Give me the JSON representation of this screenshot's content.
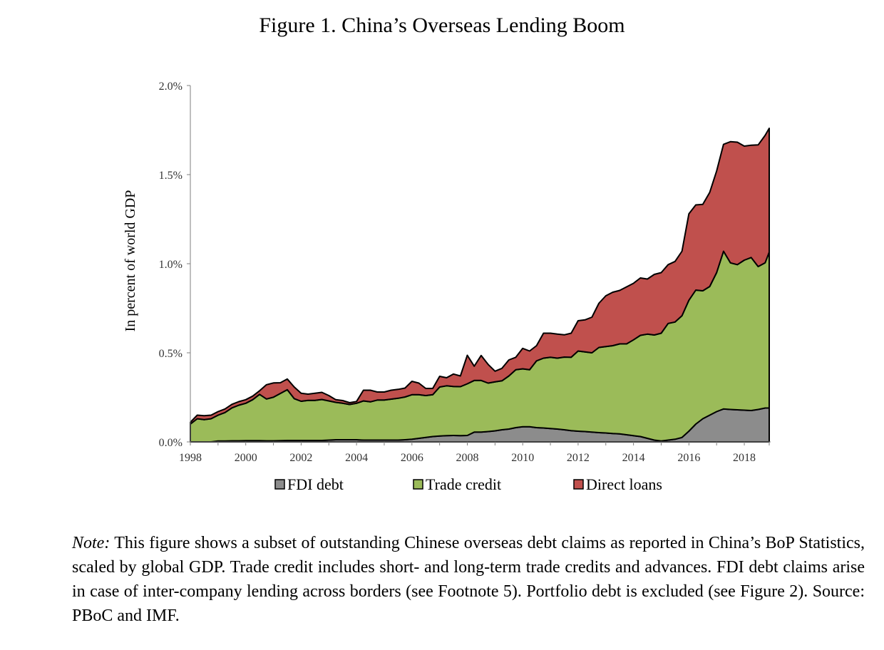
{
  "title": "Figure 1. China’s Overseas Lending Boom",
  "chart_data": {
    "type": "area",
    "stacked": true,
    "xlabel": "",
    "ylabel": "In percent of world GDP",
    "xlim": [
      1998,
      2018.9
    ],
    "ylim": [
      0,
      2.0
    ],
    "y_ticks": [
      {
        "value": 0.0,
        "label": "0.0%"
      },
      {
        "value": 0.5,
        "label": "0.5%"
      },
      {
        "value": 1.0,
        "label": "1.0%"
      },
      {
        "value": 1.5,
        "label": "1.5%"
      },
      {
        "value": 2.0,
        "label": "2.0%"
      }
    ],
    "x_ticks": [
      {
        "value": 1998,
        "label": "1998"
      },
      {
        "value": 2000,
        "label": "2000"
      },
      {
        "value": 2002,
        "label": "2002"
      },
      {
        "value": 2004,
        "label": "2004"
      },
      {
        "value": 2006,
        "label": "2006"
      },
      {
        "value": 2008,
        "label": "2008"
      },
      {
        "value": 2010,
        "label": "2010"
      },
      {
        "value": 2012,
        "label": "2012"
      },
      {
        "value": 2014,
        "label": "2014"
      },
      {
        "value": 2016,
        "label": "2016"
      },
      {
        "value": 2018,
        "label": "2018"
      }
    ],
    "grid": false,
    "legend_position": "bottom",
    "x": [
      1998,
      1998.25,
      1998.5,
      1998.75,
      1999,
      1999.25,
      1999.5,
      1999.75,
      2000,
      2000.25,
      2000.5,
      2000.75,
      2001,
      2001.25,
      2001.5,
      2001.75,
      2002,
      2002.25,
      2002.5,
      2002.75,
      2003,
      2003.25,
      2003.5,
      2003.75,
      2004,
      2004.25,
      2004.5,
      2004.75,
      2005,
      2005.25,
      2005.5,
      2005.75,
      2006,
      2006.25,
      2006.5,
      2006.75,
      2007,
      2007.25,
      2007.5,
      2007.75,
      2008,
      2008.25,
      2008.5,
      2008.75,
      2009,
      2009.25,
      2009.5,
      2009.75,
      2010,
      2010.25,
      2010.5,
      2010.75,
      2011,
      2011.25,
      2011.5,
      2011.75,
      2012,
      2012.25,
      2012.5,
      2012.75,
      2013,
      2013.25,
      2013.5,
      2013.75,
      2014,
      2014.25,
      2014.5,
      2014.75,
      2015,
      2015.25,
      2015.5,
      2015.75,
      2016,
      2016.25,
      2016.5,
      2016.75,
      2017,
      2017.25,
      2017.5,
      2017.75,
      2018,
      2018.25,
      2018.5,
      2018.75,
      2018.9
    ],
    "series": [
      {
        "name": "FDI debt",
        "color": "#8c8c8c",
        "values": [
          0.0,
          0.0,
          0.0,
          0.0,
          0.005,
          0.005,
          0.006,
          0.006,
          0.007,
          0.007,
          0.007,
          0.006,
          0.006,
          0.007,
          0.008,
          0.008,
          0.008,
          0.008,
          0.008,
          0.008,
          0.01,
          0.012,
          0.012,
          0.012,
          0.012,
          0.01,
          0.01,
          0.01,
          0.01,
          0.01,
          0.01,
          0.012,
          0.015,
          0.02,
          0.025,
          0.03,
          0.033,
          0.035,
          0.036,
          0.035,
          0.036,
          0.055,
          0.055,
          0.058,
          0.062,
          0.068,
          0.072,
          0.08,
          0.085,
          0.085,
          0.08,
          0.078,
          0.075,
          0.072,
          0.068,
          0.063,
          0.06,
          0.058,
          0.055,
          0.052,
          0.05,
          0.047,
          0.045,
          0.04,
          0.035,
          0.03,
          0.02,
          0.01,
          0.005,
          0.01,
          0.015,
          0.025,
          0.06,
          0.1,
          0.13,
          0.15,
          0.17,
          0.185,
          0.182,
          0.18,
          0.178,
          0.176,
          0.182,
          0.19,
          0.19
        ]
      },
      {
        "name": "Trade credit",
        "color": "#9bbb59",
        "values": [
          0.1,
          0.13,
          0.125,
          0.13,
          0.145,
          0.16,
          0.185,
          0.2,
          0.21,
          0.23,
          0.26,
          0.235,
          0.245,
          0.265,
          0.285,
          0.235,
          0.22,
          0.225,
          0.225,
          0.23,
          0.22,
          0.21,
          0.205,
          0.198,
          0.205,
          0.22,
          0.215,
          0.225,
          0.225,
          0.23,
          0.235,
          0.24,
          0.25,
          0.245,
          0.235,
          0.235,
          0.275,
          0.28,
          0.275,
          0.275,
          0.29,
          0.29,
          0.29,
          0.272,
          0.275,
          0.275,
          0.298,
          0.325,
          0.325,
          0.32,
          0.375,
          0.392,
          0.4,
          0.398,
          0.408,
          0.412,
          0.45,
          0.447,
          0.445,
          0.478,
          0.485,
          0.493,
          0.505,
          0.51,
          0.538,
          0.568,
          0.585,
          0.59,
          0.605,
          0.655,
          0.658,
          0.683,
          0.735,
          0.752,
          0.718,
          0.722,
          0.78,
          0.885,
          0.823,
          0.815,
          0.842,
          0.859,
          0.802,
          0.815,
          0.875
        ]
      },
      {
        "name": "Direct loans",
        "color": "#c0504d",
        "values": [
          0.01,
          0.02,
          0.022,
          0.02,
          0.02,
          0.02,
          0.02,
          0.02,
          0.02,
          0.02,
          0.02,
          0.08,
          0.08,
          0.06,
          0.06,
          0.065,
          0.045,
          0.035,
          0.04,
          0.04,
          0.03,
          0.015,
          0.015,
          0.01,
          0.01,
          0.06,
          0.065,
          0.045,
          0.045,
          0.05,
          0.05,
          0.05,
          0.075,
          0.065,
          0.04,
          0.035,
          0.06,
          0.045,
          0.07,
          0.06,
          0.16,
          0.08,
          0.14,
          0.105,
          0.06,
          0.07,
          0.09,
          0.07,
          0.115,
          0.105,
          0.085,
          0.14,
          0.135,
          0.135,
          0.125,
          0.135,
          0.17,
          0.18,
          0.2,
          0.248,
          0.285,
          0.3,
          0.3,
          0.32,
          0.317,
          0.322,
          0.309,
          0.34,
          0.34,
          0.33,
          0.34,
          0.362,
          0.485,
          0.478,
          0.485,
          0.528,
          0.57,
          0.6,
          0.68,
          0.687,
          0.64,
          0.63,
          0.683,
          0.715,
          0.695
        ]
      }
    ]
  },
  "note": {
    "label": "Note:",
    "text": " This figure shows a subset of outstanding Chinese overseas debt claims as reported in China’s BoP Statistics, scaled by global GDP. Trade credit includes short- and long-term trade credits and advances. FDI debt claims arise in case of inter-company lending across borders (see Footnote 5). Portfolio debt is excluded (see Figure 2). Source: PBoC and IMF."
  }
}
